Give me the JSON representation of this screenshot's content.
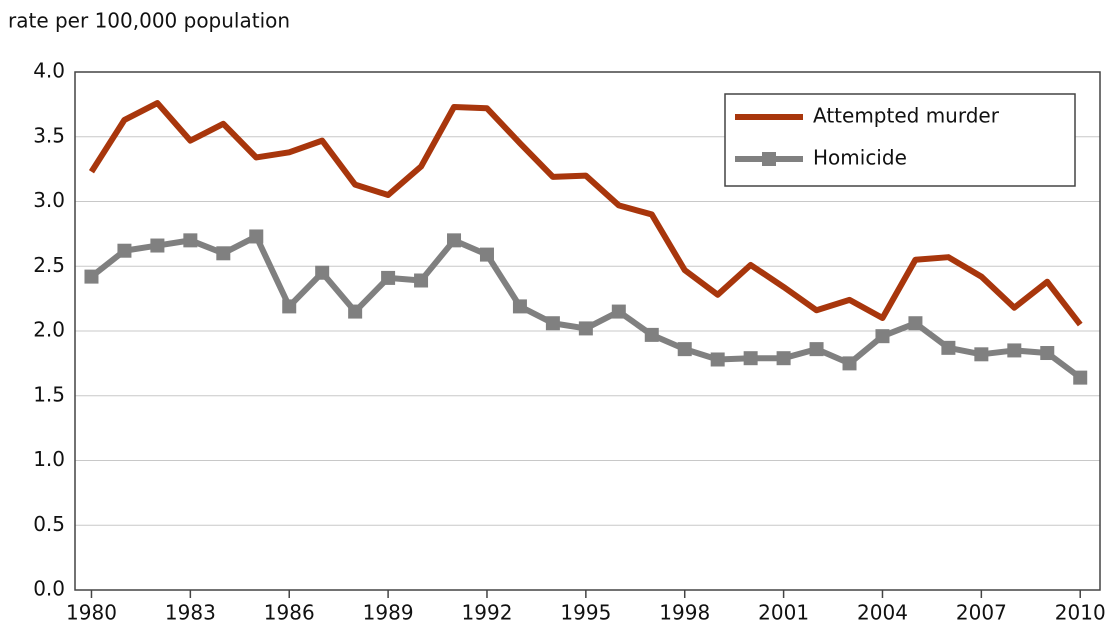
{
  "chart_data": {
    "type": "line",
    "y_label": "rate per 100,000 population",
    "x": [
      1980,
      1981,
      1982,
      1983,
      1984,
      1985,
      1986,
      1987,
      1988,
      1989,
      1990,
      1991,
      1992,
      1993,
      1994,
      1995,
      1996,
      1997,
      1998,
      1999,
      2000,
      2001,
      2002,
      2003,
      2004,
      2005,
      2006,
      2007,
      2008,
      2009,
      2010
    ],
    "series": [
      {
        "name": "Attempted murder",
        "color": "#a8360c",
        "marker": "none",
        "values": [
          3.23,
          3.63,
          3.76,
          3.47,
          3.6,
          3.34,
          3.38,
          3.47,
          3.13,
          3.05,
          3.27,
          3.73,
          3.72,
          3.45,
          3.19,
          3.2,
          2.97,
          2.9,
          2.47,
          2.28,
          2.51,
          2.34,
          2.16,
          2.24,
          2.1,
          2.55,
          2.57,
          2.42,
          2.18,
          2.38,
          2.05
        ]
      },
      {
        "name": "Homicide",
        "color": "#808080",
        "marker": "square",
        "values": [
          2.42,
          2.62,
          2.66,
          2.7,
          2.6,
          2.73,
          2.19,
          2.45,
          2.15,
          2.41,
          2.39,
          2.7,
          2.59,
          2.19,
          2.06,
          2.02,
          2.15,
          1.97,
          1.86,
          1.78,
          1.79,
          1.79,
          1.86,
          1.75,
          1.96,
          2.06,
          1.87,
          1.82,
          1.85,
          1.83,
          1.64
        ]
      }
    ],
    "xlim": [
      1979.5,
      2010.6
    ],
    "xticks": [
      1980,
      1983,
      1986,
      1989,
      1992,
      1995,
      1998,
      2001,
      2004,
      2007,
      2010
    ],
    "ylim": [
      0,
      4
    ],
    "yticks": [
      {
        "value": 0,
        "label": "0.0"
      },
      0.5,
      {
        "value": 1,
        "label": "1.0"
      },
      1.5,
      {
        "value": 2,
        "label": "2.0"
      },
      2.5,
      {
        "value": 3,
        "label": "3.0"
      },
      3.5,
      {
        "value": 4,
        "label": "4.0"
      }
    ],
    "grid": true,
    "legend": "upper right"
  }
}
